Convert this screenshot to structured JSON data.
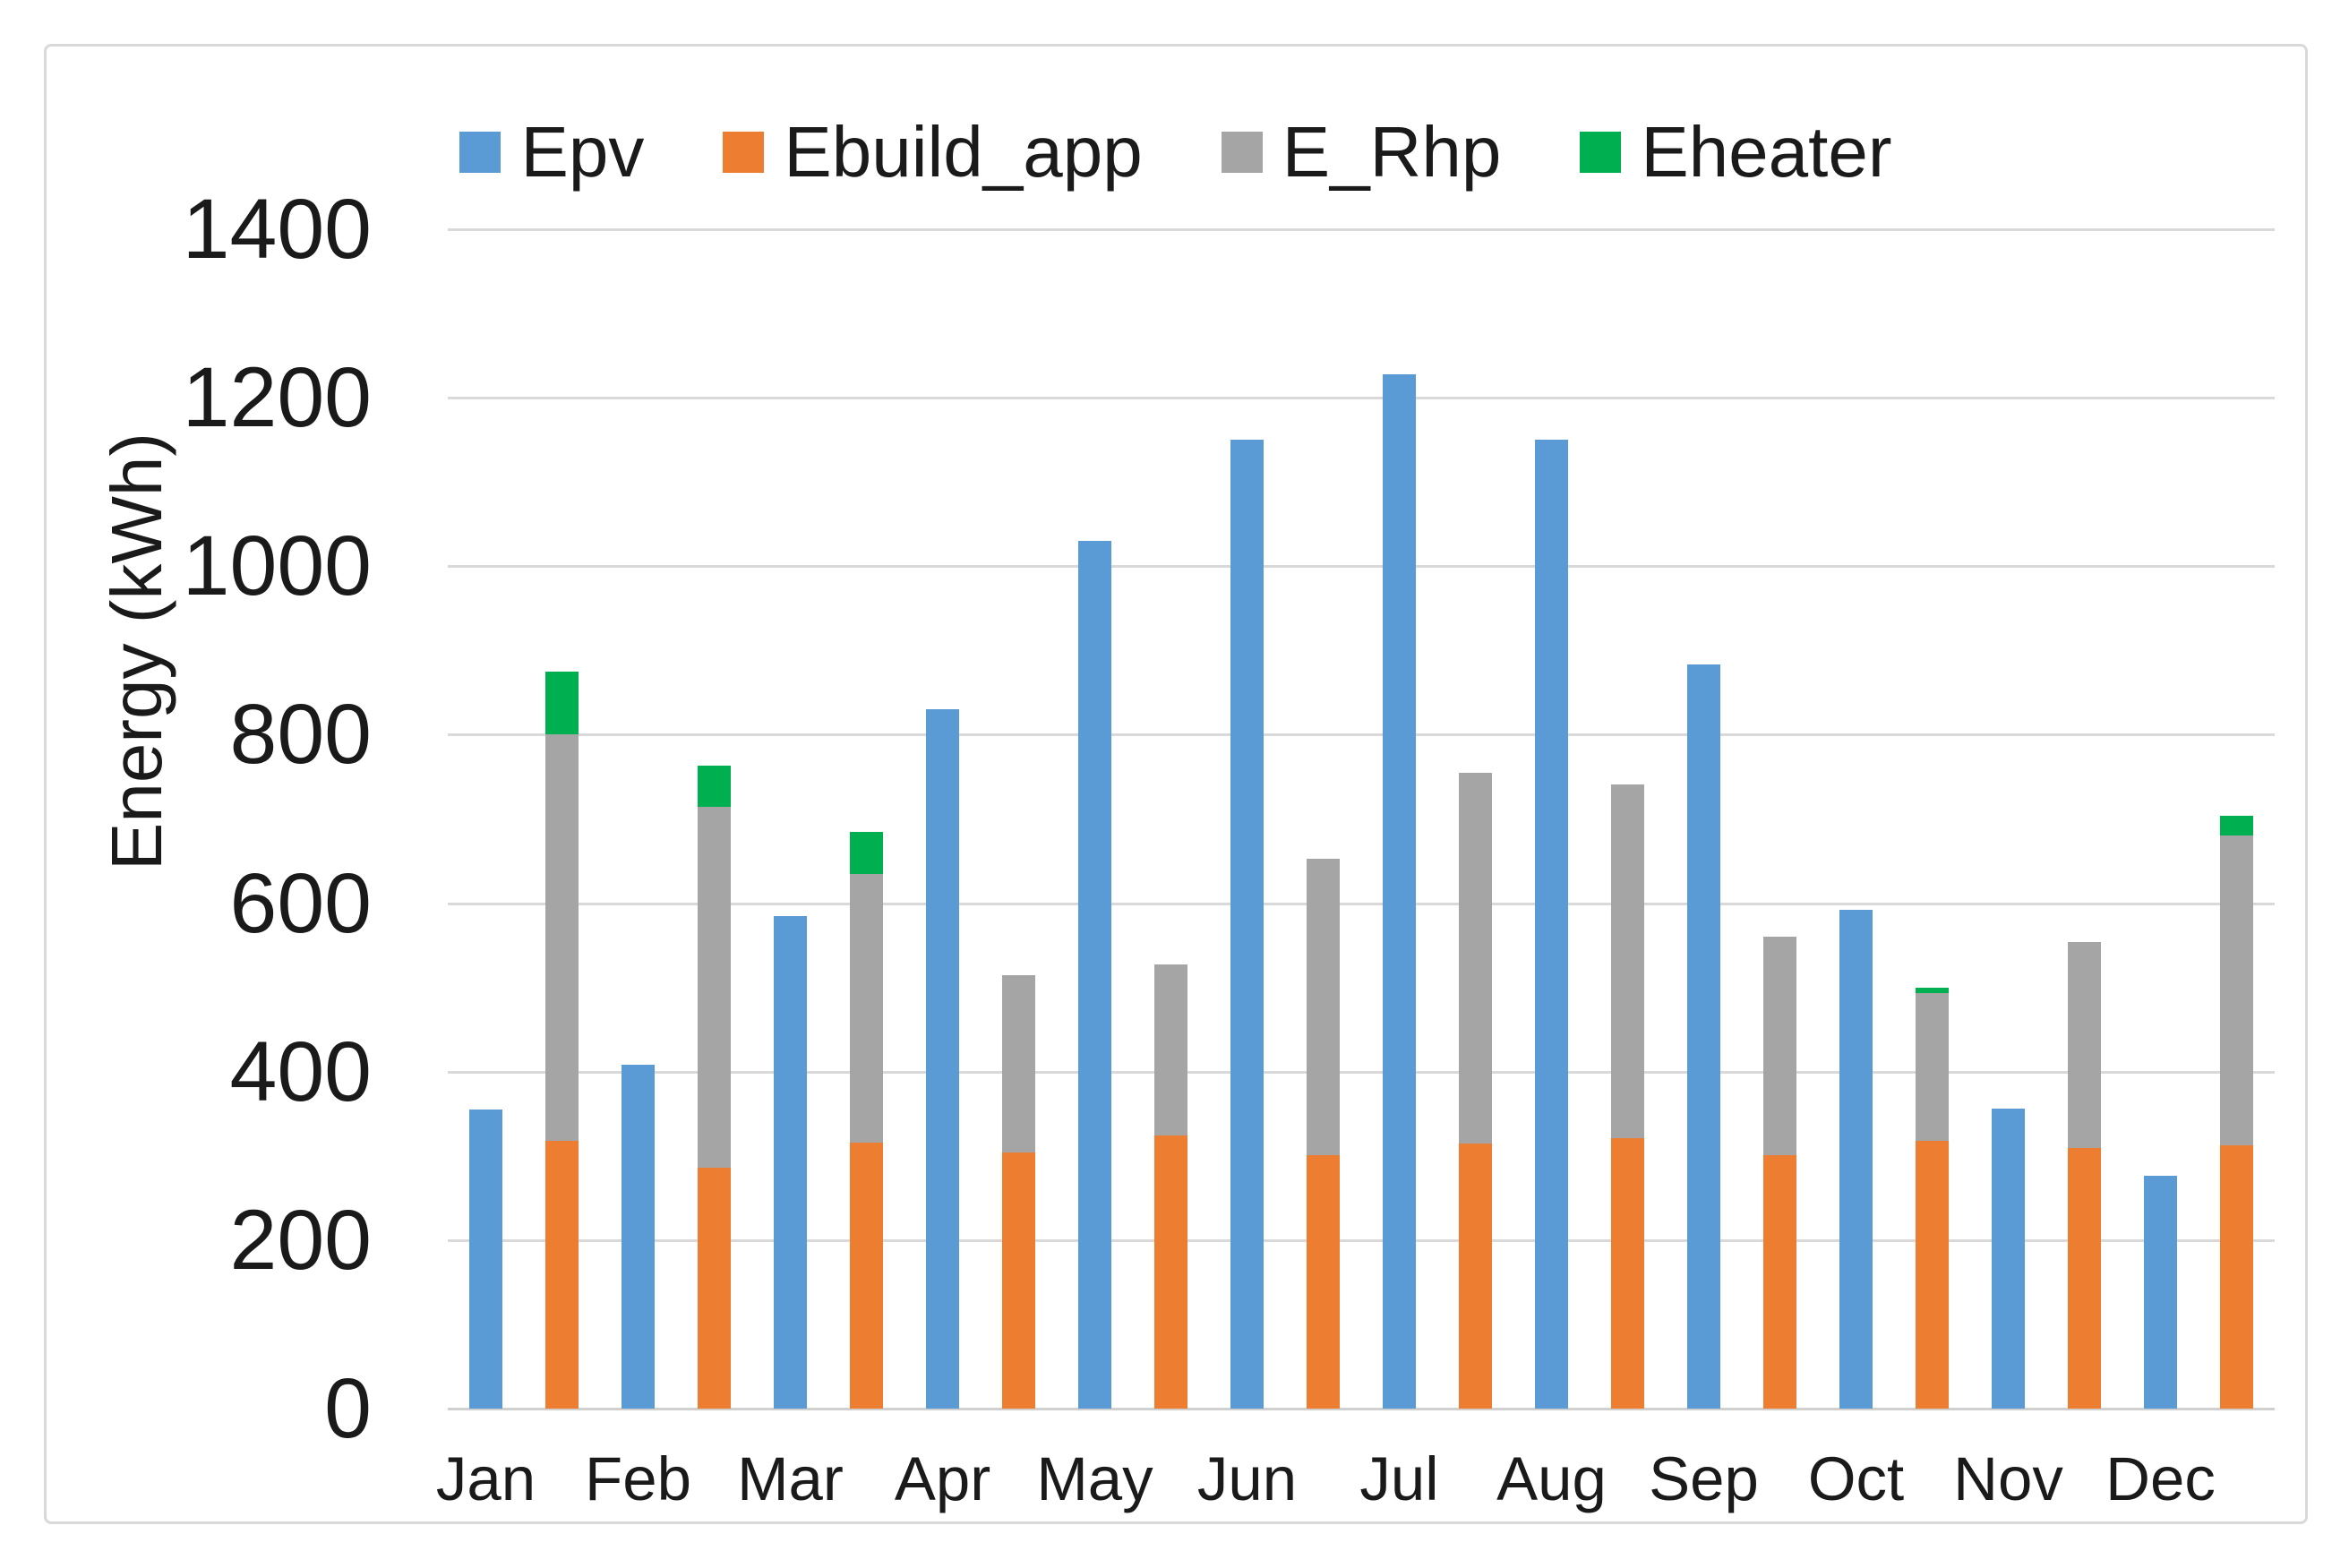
{
  "figure": {
    "background": "#FFFFFF",
    "frame_border_color": "#D9D9D9",
    "gridline_color": "#D9D9D9",
    "text_color": "#1a1a1a"
  },
  "chart_data": {
    "type": "bar",
    "title": "",
    "xlabel": "",
    "ylabel": "Energy (kWh)",
    "categories": [
      "Jan",
      "Feb",
      "Mar",
      "Apr",
      "May",
      "Jun",
      "Jul",
      "Aug",
      "Sep",
      "Oct",
      "Nov",
      "Dec"
    ],
    "ylim": [
      0,
      1400
    ],
    "yticks": [
      0,
      200,
      400,
      600,
      800,
      1000,
      1200,
      1400
    ],
    "grid": true,
    "legend_position": "top-center",
    "bar_arrangement": "two bars per month: Epv alone; Ebuild_app + E_Rhp + Eheater stacked",
    "series": [
      {
        "name": "Epv",
        "color": "#5B9BD5",
        "stack": "pv",
        "values": [
          355,
          408,
          585,
          830,
          1030,
          1150,
          1228,
          1150,
          883,
          592,
          356,
          276
        ]
      },
      {
        "name": "Ebuild_app",
        "color": "#ED7D31",
        "stack": "load",
        "values": [
          318,
          286,
          316,
          304,
          324,
          301,
          315,
          321,
          301,
          318,
          309,
          313
        ]
      },
      {
        "name": "E_Rhp",
        "color": "#A5A5A5",
        "stack": "load",
        "values": [
          482,
          428,
          319,
          211,
          203,
          352,
          440,
          420,
          259,
          175,
          245,
          367
        ]
      },
      {
        "name": "Eheater",
        "color": "#00B050",
        "stack": "load",
        "values": [
          75,
          49,
          50,
          0,
          0,
          0,
          0,
          0,
          0,
          7,
          0,
          24
        ]
      }
    ]
  }
}
